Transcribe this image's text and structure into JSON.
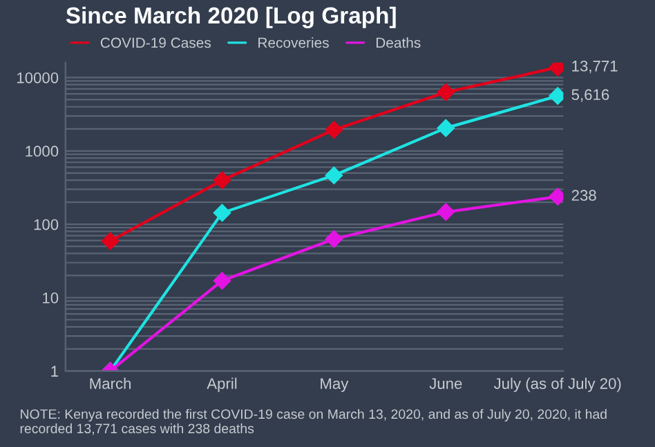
{
  "chart_data": {
    "type": "line",
    "title": "Since March 2020 [Log Graph]",
    "categories": [
      "March",
      "April",
      "May",
      "June",
      "July (as of July 20)"
    ],
    "series": [
      {
        "name": "COVID-19 Cases",
        "color": "#e3001b",
        "values": [
          59,
          398,
          1940,
          6300,
          13771
        ],
        "value_labels": [
          null,
          null,
          null,
          null,
          "13,771"
        ]
      },
      {
        "name": "Recoveries",
        "color": "#1ee3e3",
        "values": [
          1,
          143,
          465,
          2050,
          5616
        ],
        "value_labels": [
          null,
          null,
          null,
          null,
          "5,616"
        ]
      },
      {
        "name": "Deaths",
        "color": "#e314e3",
        "values": [
          1,
          17,
          63,
          147,
          238
        ],
        "value_labels": [
          null,
          null,
          null,
          null,
          "238"
        ]
      }
    ],
    "log": true,
    "ylim": [
      1,
      16000
    ],
    "yticks": [
      1,
      10,
      100,
      1000,
      10000
    ],
    "grid": "y",
    "legend": "top left",
    "marker": "diamond",
    "line_style": "solid",
    "annotations": [
      "NOTE: Kenya recorded the first COVID-19 case on March 13, 2020, and as of July 20, 2020, it had recorded 13,771 cases with 238 deaths"
    ]
  }
}
